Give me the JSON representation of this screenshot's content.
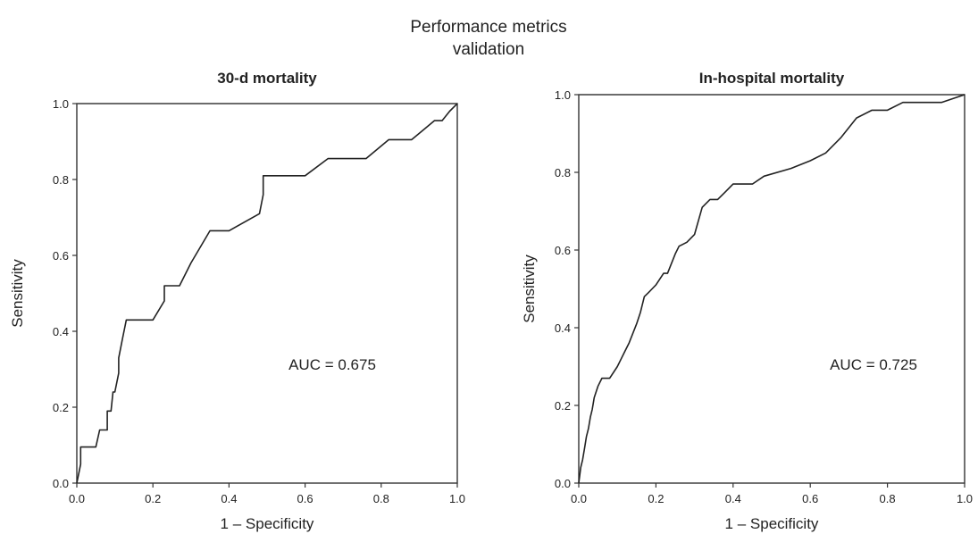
{
  "figure": {
    "title_line1": "Performance metrics",
    "title_line2": "validation"
  },
  "chart_data": [
    {
      "type": "line",
      "title": "30-d mortality",
      "xlabel": "1 – Specificity",
      "ylabel": "Sensitivity",
      "xlim": [
        0,
        1
      ],
      "ylim": [
        0,
        1
      ],
      "xticks": [
        "0.0",
        "0.2",
        "0.4",
        "0.6",
        "0.8",
        "1.0"
      ],
      "yticks": [
        "0.0",
        "0.2",
        "0.4",
        "0.6",
        "0.8",
        "1.0"
      ],
      "annotation": "AUC = 0.675",
      "reference_line": [
        [
          0,
          1
        ],
        [
          1,
          1
        ]
      ],
      "series": [
        {
          "x": [
            0.0,
            0.01,
            0.01,
            0.02,
            0.05,
            0.06,
            0.08,
            0.08,
            0.09,
            0.095,
            0.1,
            0.11,
            0.11,
            0.12,
            0.13,
            0.18,
            0.2,
            0.23,
            0.23,
            0.26,
            0.27,
            0.3,
            0.35,
            0.4,
            0.48,
            0.49,
            0.49,
            0.6,
            0.66,
            0.76,
            0.82,
            0.88,
            0.91,
            0.94,
            0.96,
            0.98,
            1.0
          ],
          "y": [
            0.0,
            0.05,
            0.095,
            0.095,
            0.095,
            0.14,
            0.14,
            0.19,
            0.19,
            0.24,
            0.24,
            0.29,
            0.33,
            0.38,
            0.43,
            0.43,
            0.43,
            0.48,
            0.52,
            0.52,
            0.52,
            0.58,
            0.665,
            0.665,
            0.71,
            0.76,
            0.81,
            0.81,
            0.855,
            0.855,
            0.905,
            0.905,
            0.93,
            0.955,
            0.955,
            0.98,
            1.0
          ]
        }
      ]
    },
    {
      "type": "line",
      "title": "In-hospital mortality",
      "xlabel": "1 – Specificity",
      "ylabel": "Sensitivity",
      "xlim": [
        0,
        1
      ],
      "ylim": [
        0,
        1
      ],
      "xticks": [
        "0.0",
        "0.2",
        "0.4",
        "0.6",
        "0.8",
        "1.0"
      ],
      "yticks": [
        "0.0",
        "0.2",
        "0.4",
        "0.6",
        "0.8",
        "1.0"
      ],
      "annotation": "AUC = 0.725",
      "reference_line": [
        [
          0,
          1
        ],
        [
          1,
          1
        ]
      ],
      "series": [
        {
          "x": [
            0.0,
            0.005,
            0.01,
            0.015,
            0.02,
            0.025,
            0.03,
            0.035,
            0.04,
            0.05,
            0.06,
            0.07,
            0.08,
            0.1,
            0.11,
            0.12,
            0.13,
            0.15,
            0.16,
            0.17,
            0.18,
            0.19,
            0.2,
            0.22,
            0.23,
            0.25,
            0.26,
            0.28,
            0.3,
            0.32,
            0.34,
            0.36,
            0.38,
            0.4,
            0.45,
            0.48,
            0.55,
            0.6,
            0.64,
            0.68,
            0.72,
            0.76,
            0.8,
            0.84,
            0.88,
            0.94,
            1.0
          ],
          "y": [
            0.0,
            0.04,
            0.06,
            0.09,
            0.12,
            0.14,
            0.17,
            0.19,
            0.22,
            0.25,
            0.27,
            0.27,
            0.27,
            0.3,
            0.32,
            0.34,
            0.36,
            0.41,
            0.44,
            0.48,
            0.49,
            0.5,
            0.51,
            0.54,
            0.54,
            0.59,
            0.61,
            0.62,
            0.64,
            0.71,
            0.73,
            0.73,
            0.75,
            0.77,
            0.77,
            0.79,
            0.81,
            0.83,
            0.85,
            0.89,
            0.94,
            0.96,
            0.96,
            0.98,
            0.98,
            0.98,
            1.0
          ]
        }
      ]
    }
  ]
}
